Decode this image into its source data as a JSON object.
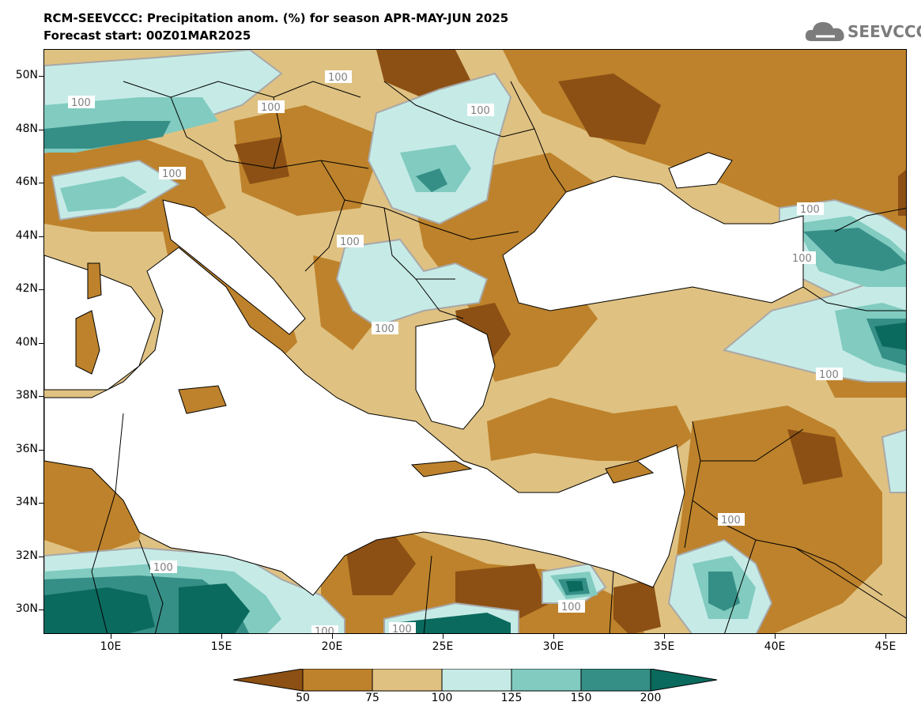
{
  "header": {
    "title_line1": "RCM-SEEVCCC: Precipitation anom. (%) for season APR-MAY-JUN 2025",
    "title_line2": "Forecast start: 00Z01MAR2025",
    "logo_text": "SEEVCCC"
  },
  "map": {
    "lat_labels": [
      "50N",
      "48N",
      "46N",
      "44N",
      "42N",
      "40N",
      "38N",
      "36N",
      "34N",
      "32N",
      "30N"
    ],
    "lon_labels": [
      "10E",
      "15E",
      "20E",
      "25E",
      "30E",
      "35E",
      "40E",
      "45E"
    ],
    "contour_label": "100"
  },
  "colorbar": {
    "labels": [
      "50",
      "75",
      "100",
      "125",
      "150",
      "200"
    ],
    "colors": {
      "below_50": "#8c5014",
      "50_75": "#bd822b",
      "75_100": "#dfc181",
      "100_125": "#c6ebe6",
      "125_150": "#81cbc0",
      "150_200": "#358f87",
      "above_200": "#0a6a5e",
      "contour_line": "#a8a8a8"
    }
  }
}
